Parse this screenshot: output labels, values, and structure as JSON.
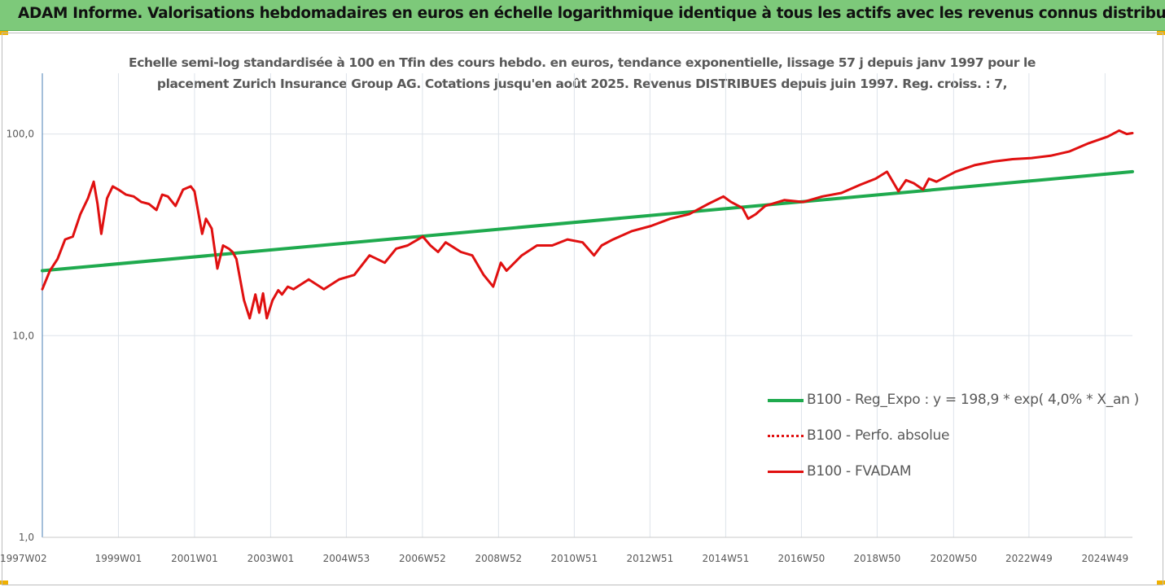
{
  "banner": {
    "title": "ADAM Informe. Valorisations hebdomadaires en euros en échelle logarithmique identique à tous les actifs avec les revenus connus distribués"
  },
  "chart_data": {
    "type": "line",
    "title_lines": [
      "Echelle semi-log standardisée à 100 en Tfin des cours hebdo. en euros, tendance exponentielle, lissage 57 j depuis janv 1997 pour le",
      "placement Zurich Insurance Group AG. Cotations jusqu'en août 2025. Revenus DISTRIBUES depuis juin 1997. Reg. croiss. : 7,"
    ],
    "y_scale": "log",
    "ylim": [
      1,
      200
    ],
    "y_ticks": [
      {
        "value": 1,
        "label": "1,0"
      },
      {
        "value": 10,
        "label": "10,0"
      },
      {
        "value": 100,
        "label": "100,0"
      }
    ],
    "x_range": [
      1997.0,
      2025.65
    ],
    "x_ticks": [
      {
        "label": "1997W02",
        "year": 1997.02
      },
      {
        "label": "1999W01",
        "year": 1999.0
      },
      {
        "label": "2001W01",
        "year": 2001.0
      },
      {
        "label": "2003W01",
        "year": 2003.0
      },
      {
        "label": "2004W53",
        "year": 2004.99
      },
      {
        "label": "2006W52",
        "year": 2006.99
      },
      {
        "label": "2008W52",
        "year": 2008.99
      },
      {
        "label": "2010W51",
        "year": 2010.98
      },
      {
        "label": "2012W51",
        "year": 2012.97
      },
      {
        "label": "2014W51",
        "year": 2014.96
      },
      {
        "label": "2016W50",
        "year": 2016.95
      },
      {
        "label": "2018W50",
        "year": 2018.94
      },
      {
        "label": "2020W50",
        "year": 2020.95
      },
      {
        "label": "2022W49",
        "year": 2022.93
      },
      {
        "label": "2024W49",
        "year": 2024.93
      }
    ],
    "grid": "vertical",
    "legend_position": "bottom-right",
    "series": [
      {
        "name": "B100 - Reg_Expo : y = 198,9 * exp( 4,0% *  X_an )",
        "color": "#1faa4e",
        "style": "solid",
        "x": [
          1997.0,
          2025.65
        ],
        "y": [
          21.0,
          65.0
        ]
      },
      {
        "name": "B100 - Perfo. absolue",
        "color": "#e01010",
        "style": "dotted",
        "x": [],
        "y": []
      },
      {
        "name": "B100 - FVADAM",
        "color": "#e01010",
        "style": "solid",
        "x": [
          1997.0,
          1997.2,
          1997.4,
          1997.6,
          1997.8,
          1998.0,
          1998.2,
          1998.35,
          1998.45,
          1998.55,
          1998.7,
          1998.85,
          1999.0,
          1999.2,
          1999.4,
          1999.6,
          1999.8,
          2000.0,
          2000.15,
          2000.3,
          2000.5,
          2000.7,
          2000.9,
          2001.0,
          2001.2,
          2001.3,
          2001.45,
          2001.6,
          2001.75,
          2001.9,
          2002.0,
          2002.1,
          2002.3,
          2002.45,
          2002.6,
          2002.7,
          2002.8,
          2002.9,
          2003.05,
          2003.2,
          2003.3,
          2003.45,
          2003.6,
          2004.0,
          2004.4,
          2004.8,
          2005.2,
          2005.6,
          2006.0,
          2006.3,
          2006.6,
          2007.0,
          2007.2,
          2007.4,
          2007.6,
          2008.0,
          2008.3,
          2008.6,
          2008.85,
          2009.05,
          2009.2,
          2009.6,
          2010.0,
          2010.4,
          2010.8,
          2011.2,
          2011.5,
          2011.7,
          2012.0,
          2012.5,
          2013.0,
          2013.5,
          2014.0,
          2014.5,
          2014.9,
          2015.1,
          2015.4,
          2015.55,
          2015.75,
          2016.0,
          2016.5,
          2017.0,
          2017.5,
          2018.0,
          2018.5,
          2018.9,
          2019.2,
          2019.5,
          2019.7,
          2019.9,
          2020.15,
          2020.3,
          2020.5,
          2021.0,
          2021.5,
          2022.0,
          2022.5,
          2023.0,
          2023.5,
          2024.0,
          2024.5,
          2025.0,
          2025.3,
          2025.5,
          2025.65
        ],
        "y": [
          17.0,
          21.0,
          24.0,
          30.0,
          31.0,
          40.0,
          48.0,
          58.0,
          45.0,
          32.0,
          48.0,
          55.0,
          53.0,
          50.0,
          49.0,
          46.0,
          45.0,
          42.0,
          50.0,
          49.0,
          44.0,
          53.0,
          55.0,
          52.0,
          32.0,
          38.0,
          34.0,
          21.5,
          28.0,
          27.0,
          26.0,
          24.0,
          15.0,
          12.2,
          16.0,
          13.0,
          16.2,
          12.2,
          15.0,
          16.8,
          16.0,
          17.5,
          17.0,
          19.0,
          17.0,
          19.0,
          20.0,
          25.0,
          23.0,
          27.0,
          28.0,
          31.0,
          28.0,
          26.0,
          29.0,
          26.0,
          25.0,
          20.0,
          17.5,
          23.0,
          21.0,
          25.0,
          28.0,
          28.0,
          30.0,
          29.0,
          25.0,
          28.0,
          30.0,
          33.0,
          35.0,
          38.0,
          40.0,
          45.0,
          49.0,
          46.0,
          43.0,
          38.0,
          40.0,
          44.0,
          47.0,
          46.0,
          49.0,
          51.0,
          56.0,
          60.0,
          65.0,
          52.0,
          59.0,
          57.0,
          53.0,
          60.0,
          58.0,
          65.0,
          70.0,
          73.0,
          75.0,
          76.0,
          78.0,
          82.0,
          90.0,
          97.0,
          104.0,
          100.0,
          101.0
        ]
      }
    ]
  }
}
